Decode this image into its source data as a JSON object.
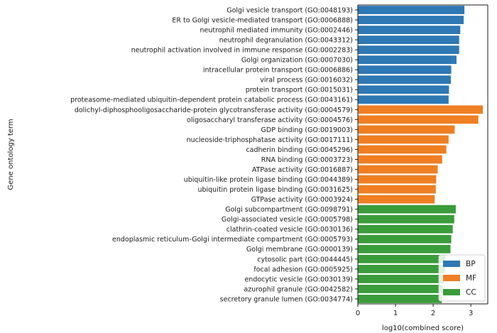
{
  "chart_data": {
    "type": "bar",
    "orientation": "horizontal",
    "xlabel": "log10(combined score)",
    "ylabel": "Gene ontology term",
    "xlim": [
      0,
      3.45
    ],
    "xticks": [
      "0",
      "1",
      "2",
      "3"
    ],
    "categories": [
      "Golgi vesicle transport (GO:0048193)",
      "ER to Golgi vesicle-mediated transport (GO:0006888)",
      "neutrophil mediated immunity (GO:0002446)",
      "neutrophil degranulation (GO:0043312)",
      "neutrophil activation involved in immune response (GO:0002283)",
      "Golgi organization (GO:0007030)",
      "intracellular protein transport (GO:0006886)",
      "viral process (GO:0016032)",
      "protein transport (GO:0015031)",
      "proteasome-mediated ubiquitin-dependent protein catabolic process (GO:0043161)",
      "dolichyl-diphosphooligosaccharide-protein glycotransferase activity (GO:0004579)",
      "oligosaccharyl transferase activity (GO:0004576)",
      "GDP binding (GO:0019003)",
      "nucleoside-triphosphatase activity (GO:0017111)",
      "cadherin binding (GO:0045296)",
      "RNA binding (GO:0003723)",
      "ATPase activity (GO:0016887)",
      "ubiquitin-like protein ligase binding (GO:0044389)",
      "ubiquitin protein ligase binding (GO:0031625)",
      "GTPase activity (GO:0003924)",
      "Golgi subcompartment (GO:0098791)",
      "Golgi-associated vesicle (GO:0005798)",
      "clathrin-coated vesicle (GO:0030136)",
      "endoplasmic reticulum-Golgi intermediate compartment (GO:0005793)",
      "Golgi membrane (GO:0000139)",
      "cytosolic part (GO:0044445)",
      "focal adhesion (GO:0005925)",
      "endocytic vesicle (GO:0030139)",
      "azurophil granule (GO:0042582)",
      "secretory granule lumen (GO:0034774)"
    ],
    "values": [
      2.83,
      2.81,
      2.72,
      2.69,
      2.69,
      2.62,
      2.48,
      2.47,
      2.42,
      2.41,
      3.32,
      3.2,
      2.57,
      2.41,
      2.35,
      2.24,
      2.12,
      2.08,
      2.07,
      2.04,
      2.6,
      2.56,
      2.52,
      2.48,
      2.46,
      2.33,
      2.31,
      2.28,
      2.25,
      2.23
    ],
    "groups": [
      "BP",
      "BP",
      "BP",
      "BP",
      "BP",
      "BP",
      "BP",
      "BP",
      "BP",
      "BP",
      "MF",
      "MF",
      "MF",
      "MF",
      "MF",
      "MF",
      "MF",
      "MF",
      "MF",
      "MF",
      "CC",
      "CC",
      "CC",
      "CC",
      "CC",
      "CC",
      "CC",
      "CC",
      "CC",
      "CC"
    ],
    "legend": {
      "position": "bottom-right",
      "entries": [
        {
          "name": "BP",
          "color": "#2e78b4"
        },
        {
          "name": "MF",
          "color": "#ef7f22"
        },
        {
          "name": "CC",
          "color": "#3a9c3a"
        }
      ]
    }
  }
}
